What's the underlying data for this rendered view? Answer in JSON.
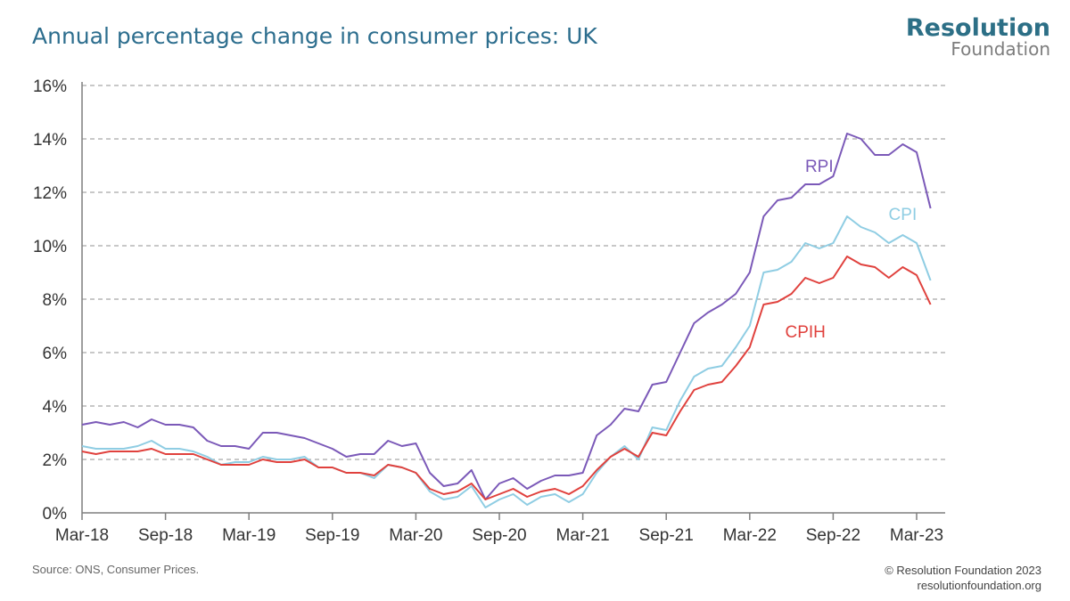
{
  "title": "Annual percentage change in consumer prices: UK",
  "logo": {
    "line1": "Resolution",
    "line2": "Foundation"
  },
  "source": "Source: ONS, Consumer Prices.",
  "copyright": "© Resolution Foundation 2023",
  "website": "resolutionfoundation.org",
  "colors": {
    "title": "#2d6e8e",
    "RPI": "#7b59b8",
    "CPI": "#8fcde3",
    "CPIH": "#e0413d",
    "grid": "#a6a6a6",
    "axis": "#7f7f7f",
    "logo_accent": "#f2c230"
  },
  "chart_data": {
    "type": "line",
    "title": "Annual percentage change in consumer prices: UK",
    "x_start": "Mar-18",
    "x_end": "Apr-23",
    "x_frequency": "monthly",
    "x_tick_labels": [
      "Mar-18",
      "Sep-18",
      "Mar-19",
      "Sep-19",
      "Mar-20",
      "Sep-20",
      "Mar-21",
      "Sep-21",
      "Mar-22",
      "Sep-22",
      "Mar-23"
    ],
    "y_tick_labels": [
      "0%",
      "2%",
      "4%",
      "6%",
      "8%",
      "10%",
      "12%",
      "14%",
      "16%"
    ],
    "ylim": [
      0,
      16
    ],
    "grid": "horizontal dashed",
    "series": [
      {
        "name": "RPI",
        "label_x": "Aug-22",
        "label_y": 13,
        "values": [
          3.3,
          3.4,
          3.3,
          3.4,
          3.2,
          3.5,
          3.3,
          3.3,
          3.2,
          2.7,
          2.5,
          2.5,
          2.4,
          3.0,
          3.0,
          2.9,
          2.8,
          2.6,
          2.4,
          2.1,
          2.2,
          2.2,
          2.7,
          2.5,
          2.6,
          1.5,
          1.0,
          1.1,
          1.6,
          0.5,
          1.1,
          1.3,
          0.9,
          1.2,
          1.4,
          1.4,
          1.5,
          2.9,
          3.3,
          3.9,
          3.8,
          4.8,
          4.9,
          6.0,
          7.1,
          7.5,
          7.8,
          8.2,
          9.0,
          11.1,
          11.7,
          11.8,
          12.3,
          12.3,
          12.6,
          14.2,
          14.0,
          13.4,
          13.4,
          13.8,
          13.5,
          11.4
        ]
      },
      {
        "name": "CPI",
        "label_x": "Feb-23",
        "label_y": 11.2,
        "values": [
          2.5,
          2.4,
          2.4,
          2.4,
          2.5,
          2.7,
          2.4,
          2.4,
          2.3,
          2.1,
          1.8,
          1.9,
          1.9,
          2.1,
          2.0,
          2.0,
          2.1,
          1.7,
          1.7,
          1.5,
          1.5,
          1.3,
          1.8,
          1.7,
          1.5,
          0.8,
          0.5,
          0.6,
          1.0,
          0.2,
          0.5,
          0.7,
          0.3,
          0.6,
          0.7,
          0.4,
          0.7,
          1.5,
          2.1,
          2.5,
          2.0,
          3.2,
          3.1,
          4.2,
          5.1,
          5.4,
          5.5,
          6.2,
          7.0,
          9.0,
          9.1,
          9.4,
          10.1,
          9.9,
          10.1,
          11.1,
          10.7,
          10.5,
          10.1,
          10.4,
          10.1,
          8.7
        ]
      },
      {
        "name": "CPIH",
        "label_x": "Jul-22",
        "label_y": 6.8,
        "values": [
          2.3,
          2.2,
          2.3,
          2.3,
          2.3,
          2.4,
          2.2,
          2.2,
          2.2,
          2.0,
          1.8,
          1.8,
          1.8,
          2.0,
          1.9,
          1.9,
          2.0,
          1.7,
          1.7,
          1.5,
          1.5,
          1.4,
          1.8,
          1.7,
          1.5,
          0.9,
          0.7,
          0.8,
          1.1,
          0.5,
          0.7,
          0.9,
          0.6,
          0.8,
          0.9,
          0.7,
          1.0,
          1.6,
          2.1,
          2.4,
          2.1,
          3.0,
          2.9,
          3.8,
          4.6,
          4.8,
          4.9,
          5.5,
          6.2,
          7.8,
          7.9,
          8.2,
          8.8,
          8.6,
          8.8,
          9.6,
          9.3,
          9.2,
          8.8,
          9.2,
          8.9,
          7.8
        ]
      }
    ]
  }
}
